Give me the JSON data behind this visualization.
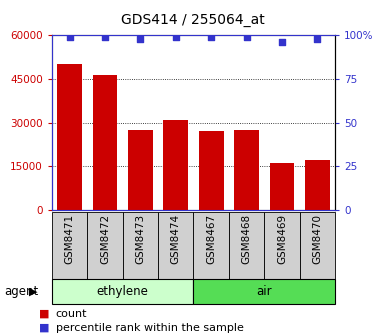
{
  "title": "GDS414 / 255064_at",
  "categories": [
    "GSM8471",
    "GSM8472",
    "GSM8473",
    "GSM8474",
    "GSM8467",
    "GSM8468",
    "GSM8469",
    "GSM8470"
  ],
  "counts": [
    50000,
    46500,
    27500,
    31000,
    27000,
    27500,
    16000,
    17000
  ],
  "percentile_ranks": [
    99,
    99,
    98,
    99,
    99,
    99,
    96,
    98
  ],
  "ylim_left": [
    0,
    60000
  ],
  "ylim_right": [
    0,
    100
  ],
  "yticks_left": [
    0,
    15000,
    30000,
    45000,
    60000
  ],
  "yticks_right": [
    0,
    25,
    50,
    75,
    100
  ],
  "bar_color": "#cc0000",
  "dot_color": "#3333cc",
  "groups": [
    {
      "label": "ethylene",
      "indices": [
        0,
        1,
        2,
        3
      ],
      "color": "#ccffcc"
    },
    {
      "label": "air",
      "indices": [
        4,
        5,
        6,
        7
      ],
      "color": "#55dd55"
    }
  ],
  "agent_label": "agent",
  "legend_count_label": "count",
  "legend_percentile_label": "percentile rank within the sample",
  "tick_bg_color": "#d0d0d0",
  "title_fontsize": 10
}
